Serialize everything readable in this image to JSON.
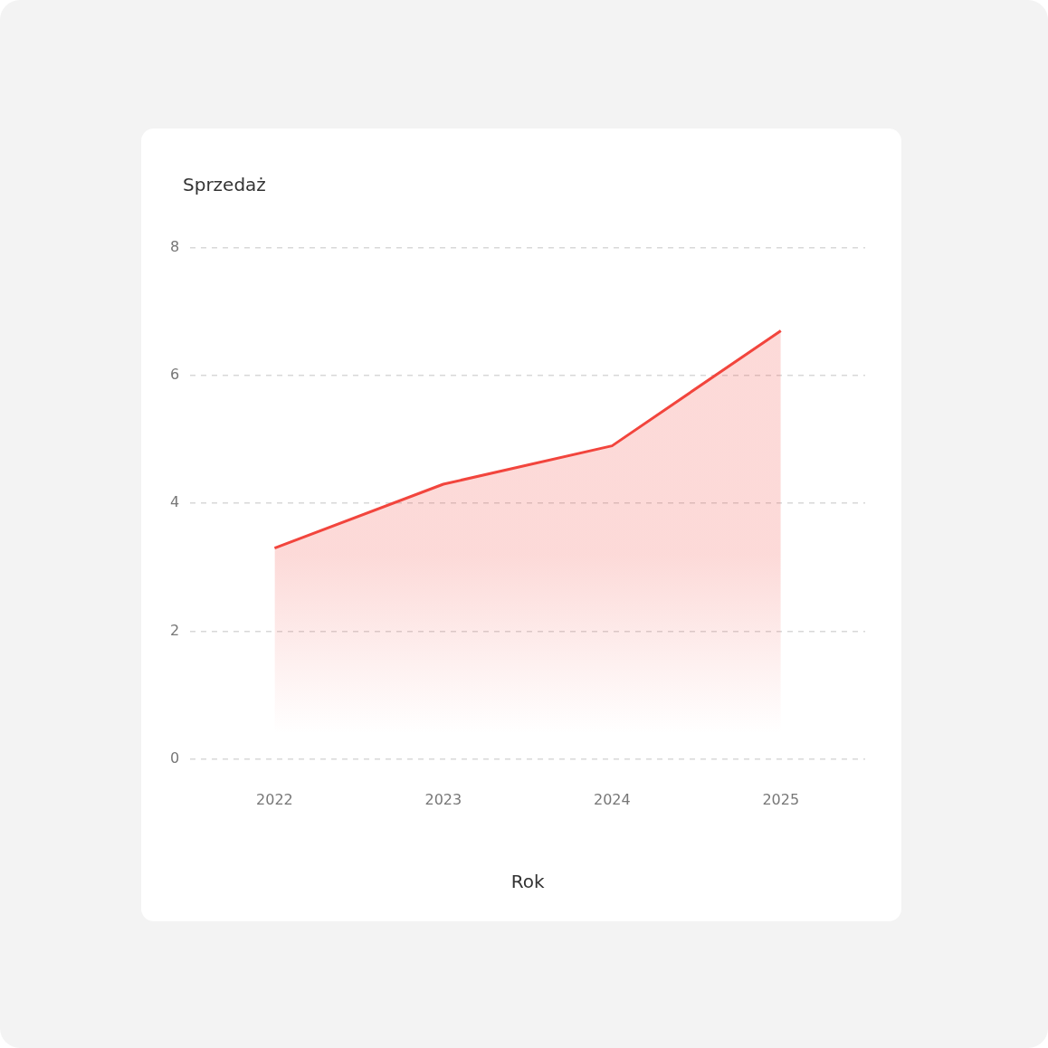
{
  "chart_data": {
    "type": "area",
    "ylabel": "Sprzedaż",
    "xlabel": "Rok",
    "categories": [
      "2022",
      "2023",
      "2024",
      "2025"
    ],
    "series": [
      {
        "color": "#f2453d",
        "values": [
          3.3,
          4.3,
          4.9,
          6.7
        ]
      }
    ],
    "ylim": [
      0,
      8
    ],
    "yticks": [
      0,
      2,
      4,
      6,
      8
    ],
    "grid": "y",
    "legend": false,
    "marker": "none",
    "line_style": "solid"
  }
}
